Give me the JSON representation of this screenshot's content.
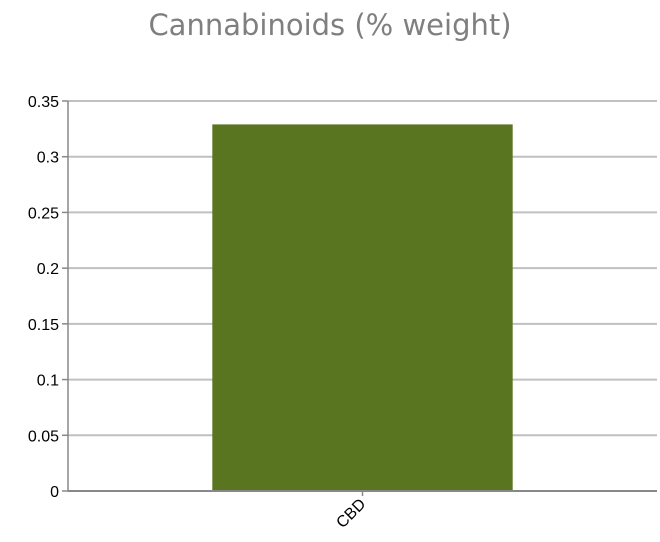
{
  "chart_data": {
    "type": "bar",
    "title": "Cannabinoids (% weight)",
    "categories": [
      "CBD"
    ],
    "values": [
      0.329
    ],
    "ylim": [
      0,
      0.35
    ],
    "yticks": [
      0,
      0.05,
      0.1,
      0.15,
      0.2,
      0.25,
      0.3,
      0.35
    ],
    "ytick_labels": [
      "0",
      "0.05",
      "0.1",
      "0.15",
      "0.2",
      "0.25",
      "0.3",
      "0.35"
    ],
    "grid": true,
    "colors": {
      "bar": "#5a7520",
      "grid": "#c0c0c0",
      "title": "#7f7f7f"
    }
  }
}
